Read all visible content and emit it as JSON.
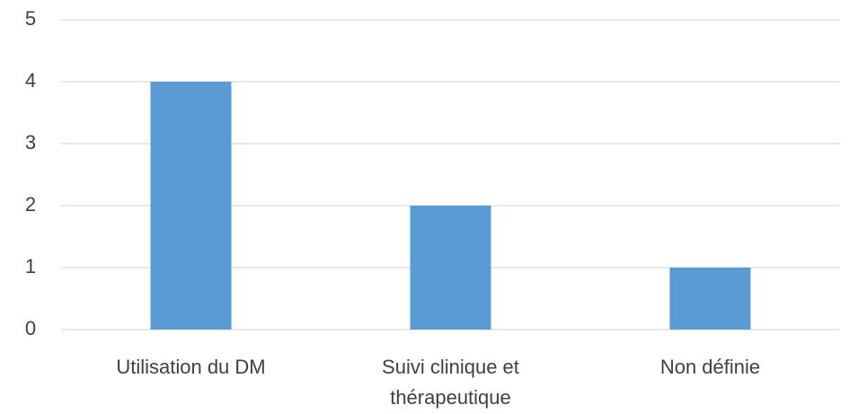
{
  "chart_data": {
    "type": "bar",
    "categories": [
      "Utilisation du DM",
      "Suivi clinique et thérapeutique",
      "Non définie"
    ],
    "values": [
      4,
      2,
      1
    ],
    "color": "#5b9bd5",
    "ylim": [
      0,
      5
    ],
    "yticks": [
      0,
      1,
      2,
      3,
      4,
      5
    ],
    "grid": true
  }
}
